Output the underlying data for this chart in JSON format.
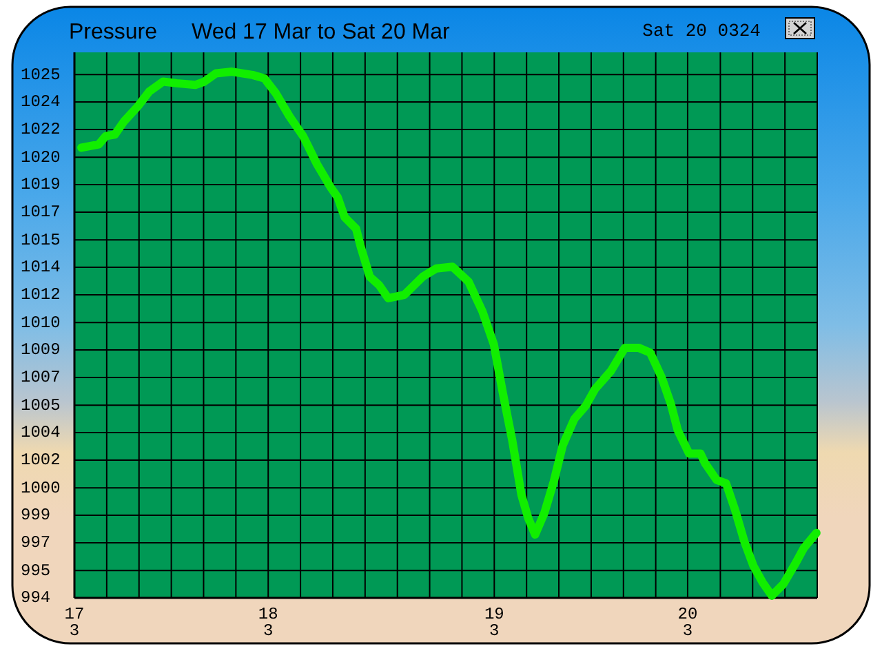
{
  "chart_data": {
    "type": "line",
    "title": "Pressure",
    "subtitle": "Wed 17 Mar to Sat 20 Mar",
    "annotations": [
      "Sat 20 0324",
      "3",
      "3",
      "3",
      "3"
    ],
    "x": [
      17.034,
      17.119,
      17.153,
      17.198,
      17.243,
      17.31,
      17.366,
      17.434,
      17.501,
      17.591,
      17.636,
      17.693,
      17.771,
      17.872,
      17.929,
      17.985,
      18.052,
      18.119,
      18.187,
      18.254,
      18.288,
      18.322,
      18.378,
      18.401,
      18.445,
      18.49,
      18.535,
      18.614,
      18.704,
      18.771,
      18.85,
      18.928,
      18.996,
      19.052,
      19.097,
      19.142,
      19.187,
      19.22,
      19.254,
      19.299,
      19.345,
      19.389,
      19.446,
      19.502,
      19.547,
      19.625,
      19.693,
      19.76,
      19.817,
      19.873,
      19.918,
      19.952,
      20.007,
      20.063,
      20.086,
      20.142,
      20.188,
      20.232,
      20.277,
      20.322,
      20.367,
      20.412,
      20.468,
      20.525,
      20.569,
      20.63
    ],
    "values": [
      1020.9,
      1021.1,
      1021.6,
      1021.7,
      1022.5,
      1023.4,
      1024.3,
      1024.9,
      1024.8,
      1024.7,
      1024.9,
      1025.4,
      1025.5,
      1025.3,
      1025.1,
      1024.2,
      1022.8,
      1021.6,
      1019.9,
      1018.5,
      1017.9,
      1016.7,
      1016.0,
      1014.9,
      1013.1,
      1012.6,
      1011.8,
      1012.0,
      1013.1,
      1013.6,
      1013.7,
      1012.8,
      1011.0,
      1009.0,
      1006.0,
      1003.2,
      999.9,
      998.5,
      997.5,
      998.8,
      1000.7,
      1002.9,
      1004.5,
      1005.3,
      1006.3,
      1007.4,
      1008.8,
      1008.8,
      1008.5,
      1007.0,
      1005.4,
      1003.8,
      1002.4,
      1002.4,
      1001.8,
      1000.8,
      1000.6,
      999.0,
      997.1,
      995.6,
      994.6,
      993.8,
      994.5,
      995.7,
      996.7,
      997.6
    ],
    "color": "#11ee00",
    "xlim": [
      17,
      20.634
    ],
    "xticks": [
      {
        "value": 17,
        "label": "17"
      },
      {
        "value": 17.158,
        "label": null
      },
      {
        "value": 17.316,
        "label": null
      },
      {
        "value": 17.474,
        "label": null
      },
      {
        "value": 17.632,
        "label": null
      },
      {
        "value": 17.79,
        "label": null
      },
      {
        "value": 17.948,
        "label": "18"
      },
      {
        "value": 18.106,
        "label": null
      },
      {
        "value": 18.264,
        "label": null
      },
      {
        "value": 18.422,
        "label": null
      },
      {
        "value": 18.58,
        "label": null
      },
      {
        "value": 18.738,
        "label": null
      },
      {
        "value": 18.896,
        "label": null
      },
      {
        "value": 19.054,
        "label": "19"
      },
      {
        "value": 19.212,
        "label": null
      },
      {
        "value": 19.37,
        "label": null
      },
      {
        "value": 19.528,
        "label": null
      },
      {
        "value": 19.686,
        "label": null
      },
      {
        "value": 19.844,
        "label": null
      },
      {
        "value": 20,
        "label": "20"
      },
      {
        "value": 20.16,
        "label": null
      },
      {
        "value": 20.318,
        "label": null
      },
      {
        "value": 20.476,
        "label": null
      },
      {
        "value": 20.634,
        "label": null
      }
    ],
    "ylim": [
      993.67,
      1026.67
    ],
    "yticks": [
      {
        "value": 993.67,
        "label": "994"
      },
      {
        "value": 995.33,
        "label": "995"
      },
      997,
      {
        "value": 998.67,
        "label": "999"
      },
      {
        "value": 1000.33,
        "label": "1000"
      },
      1002,
      {
        "value": 1003.67,
        "label": "1004"
      },
      {
        "value": 1005.33,
        "label": "1005"
      },
      1007,
      {
        "value": 1008.67,
        "label": "1009"
      },
      {
        "value": 1010.33,
        "label": "1010"
      },
      1012,
      {
        "value": 1013.67,
        "label": "1014"
      },
      {
        "value": 1015.33,
        "label": "1015"
      },
      1017,
      {
        "value": 1018.67,
        "label": "1019"
      },
      {
        "value": 1020.33,
        "label": "1020"
      },
      1022,
      {
        "value": 1023.67,
        "label": "1024"
      },
      {
        "value": 1025.33,
        "label": "1025"
      }
    ],
    "grid": true
  }
}
